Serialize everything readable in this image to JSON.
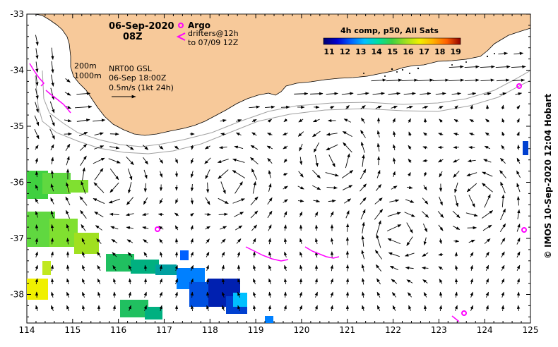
{
  "title": {
    "date": "06-Sep-2020",
    "time": "08Z"
  },
  "legend": {
    "argo_label": "Argo",
    "drifters_line1": "drifters@12h",
    "drifters_line2": "to 07/09 12Z",
    "depth_200": "200m",
    "depth_1000": "1000m",
    "product_line1": "NRT00 GSL",
    "product_line2": "06-Sep 18:00Z",
    "scale_label": "0.5m/s (1kt 24h)"
  },
  "colorbar": {
    "title": "4h comp, p50, All Sats",
    "ticks": [
      "11",
      "12",
      "13",
      "14",
      "15",
      "16",
      "17",
      "18",
      "19"
    ],
    "colors": [
      "#00006e",
      "#0000d0",
      "#0060ff",
      "#00c0ff",
      "#00e0a0",
      "#40d040",
      "#a0e020",
      "#f0f000",
      "#ffb000",
      "#ff6000",
      "#e00000",
      "#900000"
    ]
  },
  "axes": {
    "x_ticks": [
      "114",
      "115",
      "116",
      "117",
      "118",
      "119",
      "120",
      "121",
      "122",
      "123",
      "124",
      "125"
    ],
    "y_ticks": [
      "-33",
      "-34",
      "-35",
      "-36",
      "-37",
      "-38"
    ]
  },
  "credit": "© IMOS 10-Sep-2020 12:04 Hobart",
  "colors": {
    "land": "#f7c99a",
    "argo": "#ff00ff",
    "drifter": "#ff00ff",
    "isobath": "#a0a0a0"
  },
  "icons": {
    "argo": "circle-marker-icon",
    "drifter": "chevron-marker-icon"
  }
}
